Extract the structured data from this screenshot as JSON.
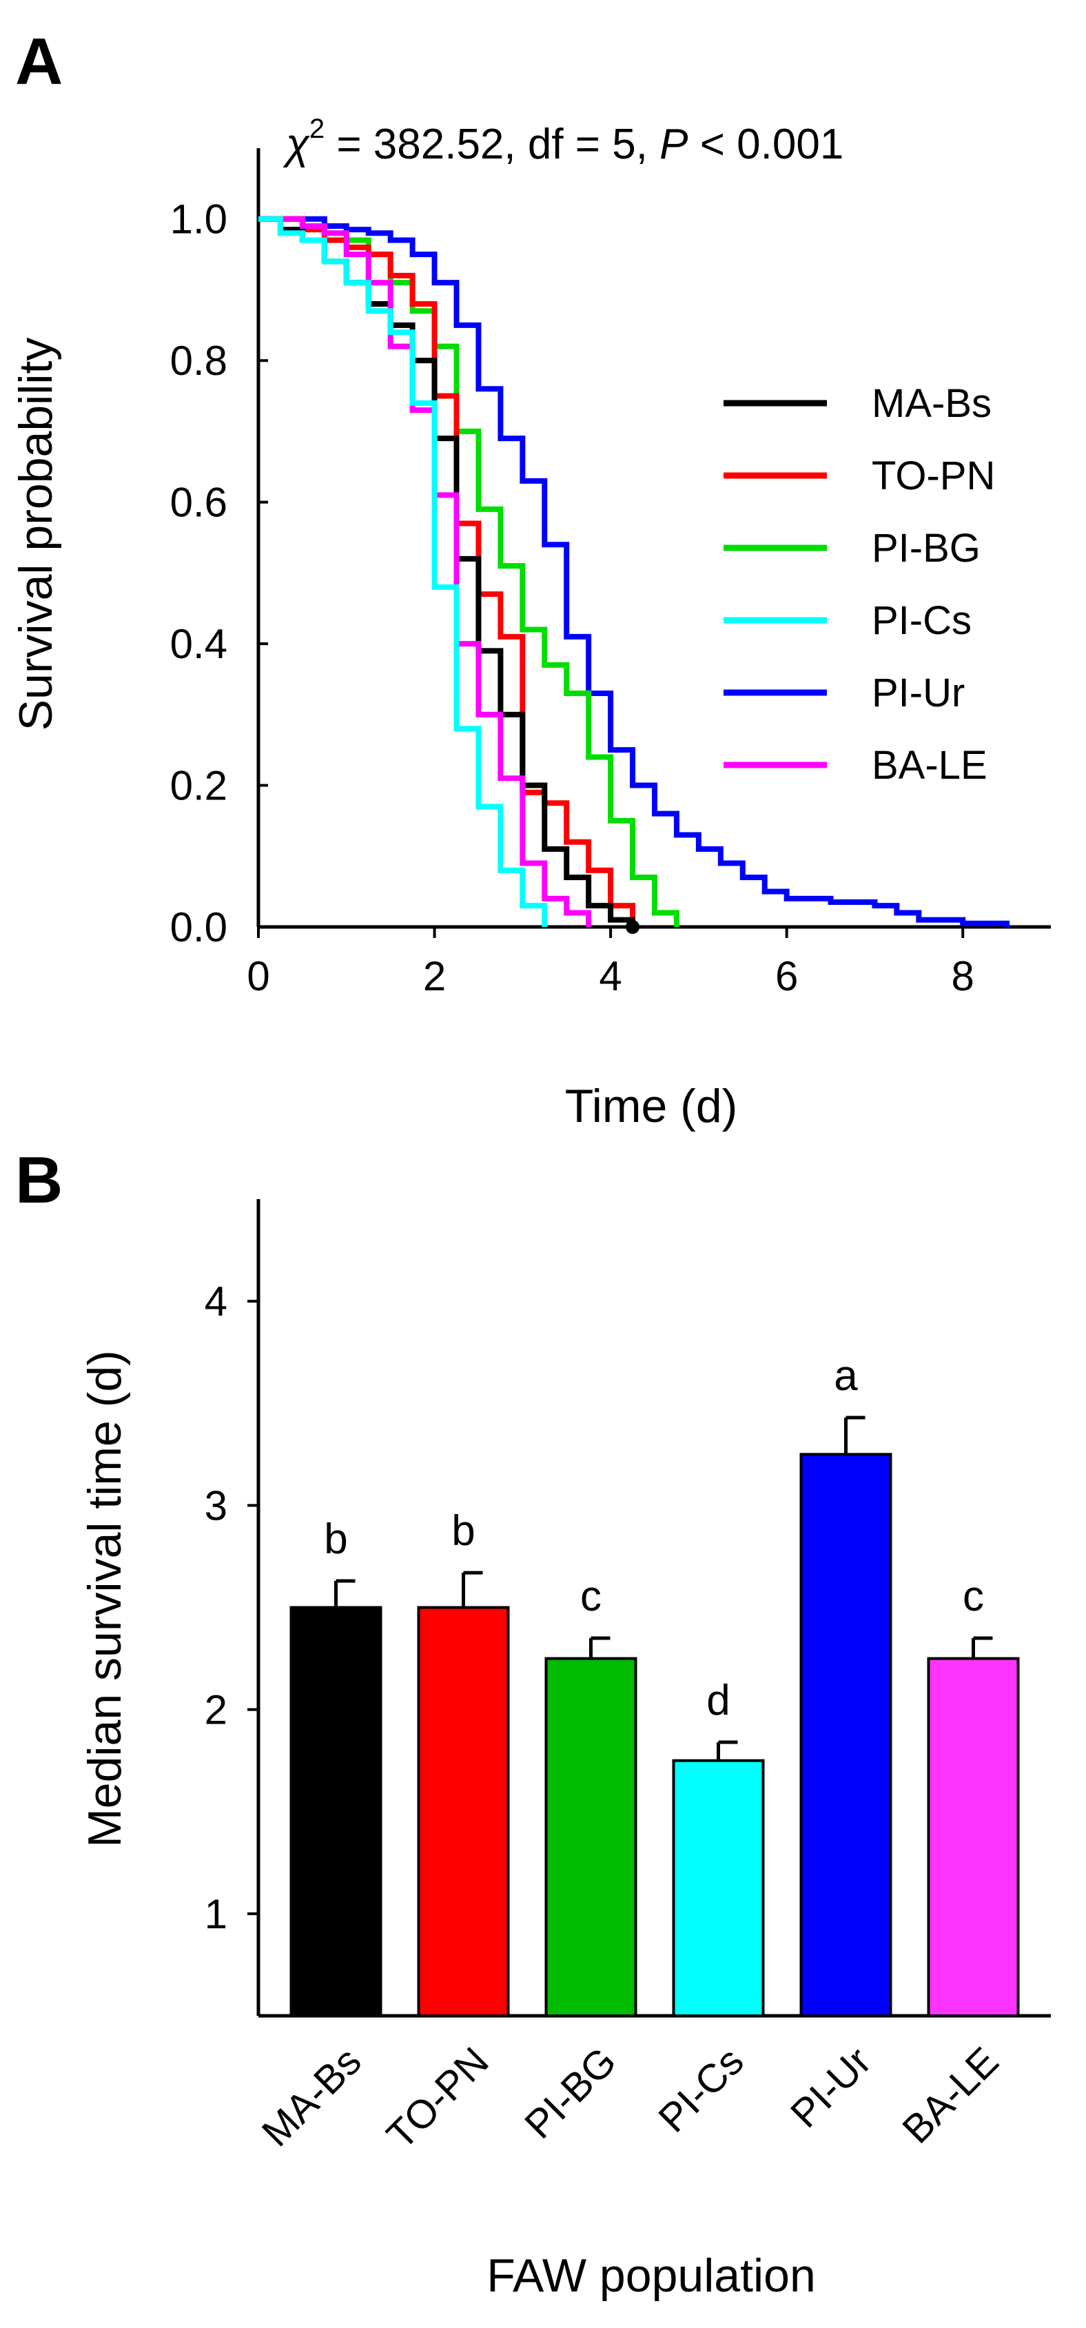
{
  "panels": {
    "a": {
      "letter": "A"
    },
    "b": {
      "letter": "B"
    }
  },
  "chart_data": [
    {
      "type": "line",
      "step": true,
      "panel": "A",
      "title": "",
      "annotation": {
        "chi": "χ",
        "sup": "2",
        "stat": " = 382.52, df = 5,   ",
        "p_symbol": "P",
        "p_value": " < 0.001"
      },
      "xlabel": "Time (d)",
      "ylabel": "Survival probability",
      "xlim": [
        0,
        9
      ],
      "ylim": [
        0,
        1.1
      ],
      "xticks": [
        0,
        2,
        4,
        6,
        8
      ],
      "xtick_labels": [
        "0",
        "2",
        "4",
        "6",
        "8"
      ],
      "yticks": [
        0,
        0.2,
        0.4,
        0.6,
        0.8,
        1.0
      ],
      "ytick_labels": [
        "0.0",
        "0.2",
        "0.4",
        "0.6",
        "0.8",
        "1.0"
      ],
      "legend_position": "right",
      "series": [
        {
          "name": "MA-Bs",
          "color": "#000000",
          "marker_end": true,
          "x": [
            0,
            0.25,
            0.5,
            0.75,
            1.0,
            1.25,
            1.5,
            1.75,
            2.0,
            2.25,
            2.5,
            2.75,
            3.0,
            3.25,
            3.5,
            3.75,
            4.0,
            4.25
          ],
          "y": [
            1.0,
            0.985,
            0.97,
            0.94,
            0.91,
            0.88,
            0.85,
            0.8,
            0.69,
            0.52,
            0.39,
            0.3,
            0.2,
            0.11,
            0.07,
            0.03,
            0.01,
            0.0
          ]
        },
        {
          "name": "TO-PN",
          "color": "#ff0000",
          "marker_end": true,
          "x": [
            0,
            0.5,
            0.75,
            1.0,
            1.25,
            1.5,
            1.75,
            2.0,
            2.25,
            2.5,
            2.75,
            3.0,
            3.25,
            3.5,
            3.75,
            4.0,
            4.25
          ],
          "y": [
            1.0,
            0.985,
            0.97,
            0.96,
            0.95,
            0.92,
            0.88,
            0.75,
            0.57,
            0.47,
            0.41,
            0.19,
            0.175,
            0.12,
            0.08,
            0.03,
            0.0
          ]
        },
        {
          "name": "PI-BG",
          "color": "#00dd00",
          "marker_end": false,
          "x": [
            0,
            0.5,
            0.75,
            1.0,
            1.25,
            1.5,
            1.75,
            2.0,
            2.25,
            2.5,
            2.75,
            3.0,
            3.25,
            3.5,
            3.75,
            4.0,
            4.25,
            4.5,
            4.75
          ],
          "y": [
            1.0,
            0.99,
            0.98,
            0.97,
            0.95,
            0.91,
            0.87,
            0.82,
            0.7,
            0.59,
            0.51,
            0.42,
            0.37,
            0.33,
            0.24,
            0.15,
            0.07,
            0.02,
            0.0
          ]
        },
        {
          "name": "PI-Cs",
          "color": "#00ffff",
          "marker_end": false,
          "x": [
            0,
            0.25,
            0.5,
            0.75,
            1.0,
            1.25,
            1.5,
            1.75,
            2.0,
            2.25,
            2.5,
            2.75,
            3.0,
            3.25
          ],
          "y": [
            1.0,
            0.98,
            0.97,
            0.94,
            0.91,
            0.87,
            0.84,
            0.74,
            0.48,
            0.28,
            0.17,
            0.08,
            0.03,
            0.0
          ]
        },
        {
          "name": "PI-Ur",
          "color": "#0000ff",
          "marker_end": false,
          "x": [
            0,
            0.75,
            1.0,
            1.25,
            1.5,
            1.75,
            2.0,
            2.25,
            2.5,
            2.75,
            3.0,
            3.25,
            3.5,
            3.75,
            4.0,
            4.25,
            4.5,
            4.75,
            5.0,
            5.25,
            5.5,
            5.75,
            6.0,
            6.5,
            7.0,
            7.25,
            7.5,
            8.0,
            8.5
          ],
          "y": [
            1.0,
            0.99,
            0.985,
            0.98,
            0.97,
            0.95,
            0.91,
            0.85,
            0.76,
            0.69,
            0.63,
            0.54,
            0.41,
            0.33,
            0.25,
            0.2,
            0.16,
            0.13,
            0.11,
            0.09,
            0.07,
            0.05,
            0.04,
            0.035,
            0.03,
            0.02,
            0.01,
            0.005,
            0.0
          ]
        },
        {
          "name": "BA-LE",
          "color": "#ff00ff",
          "marker_end": false,
          "x": [
            0,
            0.5,
            0.75,
            1.0,
            1.25,
            1.5,
            1.75,
            2.0,
            2.25,
            2.5,
            2.75,
            3.0,
            3.25,
            3.5,
            3.75
          ],
          "y": [
            1.0,
            0.99,
            0.98,
            0.95,
            0.91,
            0.82,
            0.73,
            0.61,
            0.4,
            0.3,
            0.21,
            0.09,
            0.04,
            0.02,
            0.0
          ]
        }
      ]
    },
    {
      "type": "bar",
      "panel": "B",
      "title": "",
      "xlabel": "FAW population",
      "ylabel": "Median survival time (d)",
      "ylim": [
        0.5,
        4.5
      ],
      "yticks": [
        1,
        2,
        3,
        4
      ],
      "ytick_labels": [
        "1",
        "2",
        "3",
        "4"
      ],
      "categories": [
        "MA-Bs",
        "TO-PN",
        "PI-BG",
        "PI-Cs",
        "PI-Ur",
        "BA-LE"
      ],
      "values": [
        2.5,
        2.5,
        2.25,
        1.75,
        3.25,
        2.25
      ],
      "errors": [
        0.13,
        0.17,
        0.1,
        0.09,
        0.18,
        0.1
      ],
      "significance": [
        "b",
        "b",
        "c",
        "d",
        "a",
        "c"
      ],
      "colors": [
        "#000000",
        "#ff0000",
        "#00bb00",
        "#00ffff",
        "#0000ff",
        "#ff33ff"
      ]
    }
  ]
}
